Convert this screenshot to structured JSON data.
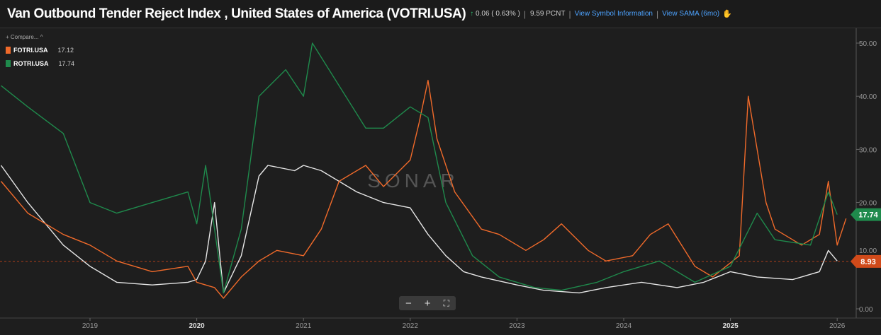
{
  "header": {
    "title": "Van Outbound Tender Reject Index , United States of America (VOTRI.USA)",
    "change": "0.06 ( 0.63% )",
    "value": "9.59 PCNT",
    "link1": "View Symbol Information",
    "link2": "View SAMA (6mo)"
  },
  "legend": {
    "compare": "+ Compare... ^",
    "items": [
      {
        "name": "FOTRI.USA",
        "value": "17.12",
        "color": "#f06a2a"
      },
      {
        "name": "ROTRI.USA",
        "value": "17.74",
        "color": "#1f8a4c"
      }
    ]
  },
  "watermark": "SONAR",
  "zoom_controls": {
    "minus": "−",
    "plus": "+",
    "fullscreen": "⛶"
  },
  "chart_data": {
    "type": "line",
    "ylim": [
      0,
      52
    ],
    "yticks": [
      "0.00",
      "10.00",
      "20.00",
      "30.00",
      "40.00",
      "50.00"
    ],
    "xticks": [
      "2019",
      "2020",
      "2021",
      "2022",
      "2023",
      "2024",
      "2025",
      "2026"
    ],
    "grid": false,
    "legend": "top-left",
    "markers": [
      {
        "label": "17.74",
        "value": 17.74,
        "color": "#1f8a4c"
      },
      {
        "label": "8.93",
        "value": 8.93,
        "color": "#d04a1a"
      }
    ],
    "series": [
      {
        "name": "VOTRI.USA",
        "color": "#e6e6e6",
        "points": [
          [
            "2018-03",
            27
          ],
          [
            "2018-06",
            20
          ],
          [
            "2018-10",
            12
          ],
          [
            "2019-01",
            8
          ],
          [
            "2019-04",
            5
          ],
          [
            "2019-08",
            4.5
          ],
          [
            "2019-12",
            5
          ],
          [
            "2020-01",
            5.5
          ],
          [
            "2020-02",
            9
          ],
          [
            "2020-03",
            20
          ],
          [
            "2020-04",
            3
          ],
          [
            "2020-06",
            10
          ],
          [
            "2020-08",
            25
          ],
          [
            "2020-09",
            27
          ],
          [
            "2020-12",
            26
          ],
          [
            "2021-01",
            27
          ],
          [
            "2021-03",
            26
          ],
          [
            "2021-07",
            22
          ],
          [
            "2021-10",
            20
          ],
          [
            "2022-01",
            19
          ],
          [
            "2022-03",
            14
          ],
          [
            "2022-05",
            10
          ],
          [
            "2022-07",
            7
          ],
          [
            "2022-09",
            6
          ],
          [
            "2023-01",
            4.5
          ],
          [
            "2023-04",
            3.5
          ],
          [
            "2023-08",
            3
          ],
          [
            "2023-11",
            4
          ],
          [
            "2024-03",
            5
          ],
          [
            "2024-07",
            4
          ],
          [
            "2024-10",
            5
          ],
          [
            "2025-01",
            7
          ],
          [
            "2025-04",
            6
          ],
          [
            "2025-08",
            5.5
          ],
          [
            "2025-11",
            7
          ],
          [
            "2025-12",
            11
          ],
          [
            "2026-01",
            9
          ]
        ]
      },
      {
        "name": "FOTRI.USA",
        "color": "#f06a2a",
        "points": [
          [
            "2018-03",
            24
          ],
          [
            "2018-06",
            18
          ],
          [
            "2018-10",
            14
          ],
          [
            "2019-01",
            12
          ],
          [
            "2019-04",
            9
          ],
          [
            "2019-08",
            7
          ],
          [
            "2019-12",
            8
          ],
          [
            "2020-01",
            5
          ],
          [
            "2020-03",
            4
          ],
          [
            "2020-04",
            2
          ],
          [
            "2020-06",
            6
          ],
          [
            "2020-08",
            9
          ],
          [
            "2020-10",
            11
          ],
          [
            "2021-01",
            10
          ],
          [
            "2021-03",
            15
          ],
          [
            "2021-05",
            24
          ],
          [
            "2021-08",
            27
          ],
          [
            "2021-10",
            23
          ],
          [
            "2022-01",
            28
          ],
          [
            "2022-02",
            35
          ],
          [
            "2022-03",
            43
          ],
          [
            "2022-04",
            32
          ],
          [
            "2022-06",
            22
          ],
          [
            "2022-09",
            15
          ],
          [
            "2022-11",
            14
          ],
          [
            "2023-02",
            11
          ],
          [
            "2023-04",
            13
          ],
          [
            "2023-06",
            16
          ],
          [
            "2023-09",
            11
          ],
          [
            "2023-11",
            9
          ],
          [
            "2024-02",
            10
          ],
          [
            "2024-04",
            14
          ],
          [
            "2024-06",
            16
          ],
          [
            "2024-09",
            8
          ],
          [
            "2024-11",
            6
          ],
          [
            "2025-02",
            10
          ],
          [
            "2025-03",
            40
          ],
          [
            "2025-05",
            20
          ],
          [
            "2025-06",
            15
          ],
          [
            "2025-09",
            12
          ],
          [
            "2025-11",
            14
          ],
          [
            "2025-12",
            24
          ],
          [
            "2026-01",
            12
          ],
          [
            "2026-02",
            17
          ]
        ]
      },
      {
        "name": "ROTRI.USA",
        "color": "#1f8a4c",
        "points": [
          [
            "2018-03",
            42
          ],
          [
            "2018-06",
            38
          ],
          [
            "2018-10",
            33
          ],
          [
            "2019-01",
            20
          ],
          [
            "2019-04",
            18
          ],
          [
            "2019-08",
            20
          ],
          [
            "2019-12",
            22
          ],
          [
            "2020-01",
            16
          ],
          [
            "2020-02",
            27
          ],
          [
            "2020-04",
            3
          ],
          [
            "2020-06",
            15
          ],
          [
            "2020-08",
            40
          ],
          [
            "2020-11",
            45
          ],
          [
            "2021-01",
            40
          ],
          [
            "2021-02",
            50
          ],
          [
            "2021-05",
            42
          ],
          [
            "2021-08",
            34
          ],
          [
            "2021-10",
            34
          ],
          [
            "2022-01",
            38
          ],
          [
            "2022-03",
            36
          ],
          [
            "2022-05",
            20
          ],
          [
            "2022-08",
            10
          ],
          [
            "2022-11",
            6
          ],
          [
            "2023-03",
            4
          ],
          [
            "2023-06",
            3.5
          ],
          [
            "2023-10",
            5
          ],
          [
            "2024-01",
            7
          ],
          [
            "2024-05",
            9
          ],
          [
            "2024-09",
            5
          ],
          [
            "2025-01",
            8
          ],
          [
            "2025-04",
            18
          ],
          [
            "2025-06",
            13
          ],
          [
            "2025-10",
            12
          ],
          [
            "2025-12",
            22
          ],
          [
            "2026-01",
            17.74
          ]
        ]
      }
    ]
  }
}
